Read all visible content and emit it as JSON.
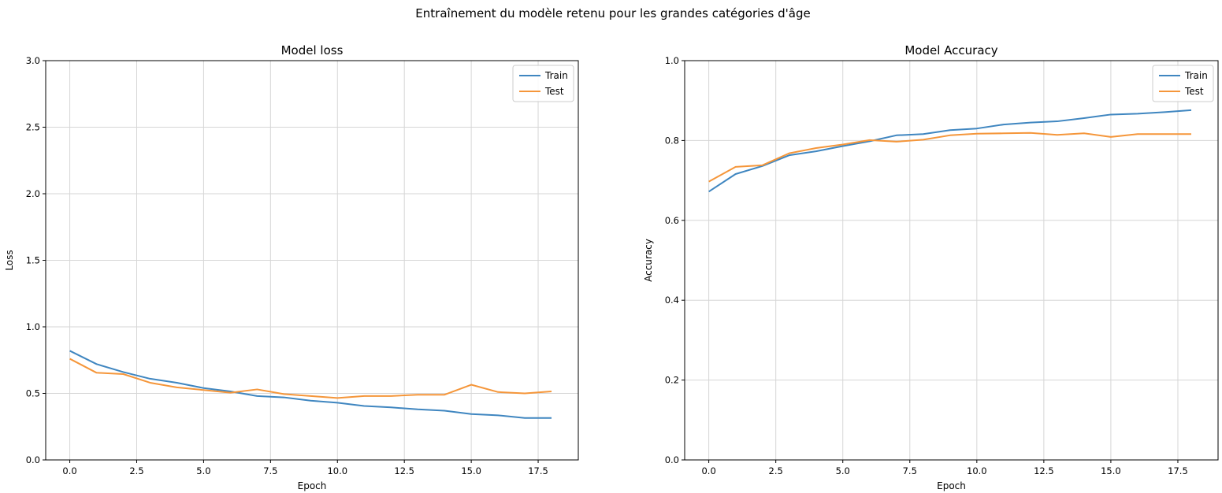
{
  "figure": {
    "suptitle": "Entraînement du modèle retenu pour les grandes catégories d'âge"
  },
  "colors": {
    "train": "#3f86c0",
    "test": "#f5963a",
    "grid": "#d6d6d6"
  },
  "chart_data": [
    {
      "type": "line",
      "title": "Model loss",
      "xlabel": "Epoch",
      "ylabel": "Loss",
      "xlim": [
        -0.9,
        19.0
      ],
      "ylim": [
        0,
        3.0
      ],
      "xticks": [
        0,
        2.5,
        5,
        7.5,
        10,
        12.5,
        15,
        17.5
      ],
      "xtick_labels": [
        "0.0",
        "2.5",
        "5.0",
        "7.5",
        "10.0",
        "12.5",
        "15.0",
        "17.5"
      ],
      "yticks": [
        0,
        0.5,
        1,
        1.5,
        2,
        2.5,
        3
      ],
      "ytick_labels": [
        "0.0",
        "0.5",
        "1.0",
        "1.5",
        "2.0",
        "2.5",
        "3.0"
      ],
      "grid": true,
      "legend": "top-right",
      "x": [
        0,
        1,
        2,
        3,
        4,
        5,
        6,
        7,
        8,
        9,
        10,
        11,
        12,
        13,
        14,
        15,
        16,
        17,
        18
      ],
      "series": [
        {
          "name": "Train",
          "values": [
            0.82,
            0.72,
            0.66,
            0.61,
            0.58,
            0.54,
            0.515,
            0.48,
            0.47,
            0.445,
            0.43,
            0.405,
            0.395,
            0.38,
            0.37,
            0.345,
            0.335,
            0.315,
            0.315
          ]
        },
        {
          "name": "Test",
          "values": [
            0.76,
            0.655,
            0.645,
            0.58,
            0.545,
            0.525,
            0.505,
            0.53,
            0.495,
            0.48,
            0.465,
            0.48,
            0.48,
            0.49,
            0.49,
            0.565,
            0.51,
            0.5,
            0.515
          ]
        }
      ]
    },
    {
      "type": "line",
      "title": "Model Accuracy",
      "xlabel": "Epoch",
      "ylabel": "Accuracy",
      "xlim": [
        -0.9,
        19.0
      ],
      "ylim": [
        0,
        1.0
      ],
      "xticks": [
        0,
        2.5,
        5,
        7.5,
        10,
        12.5,
        15,
        17.5
      ],
      "xtick_labels": [
        "0.0",
        "2.5",
        "5.0",
        "7.5",
        "10.0",
        "12.5",
        "15.0",
        "17.5"
      ],
      "yticks": [
        0,
        0.2,
        0.4,
        0.6,
        0.8,
        1.0
      ],
      "ytick_labels": [
        "0.0",
        "0.2",
        "0.4",
        "0.6",
        "0.8",
        "1.0"
      ],
      "grid": true,
      "legend": "top-right",
      "x": [
        0,
        1,
        2,
        3,
        4,
        5,
        6,
        7,
        8,
        9,
        10,
        11,
        12,
        13,
        14,
        15,
        16,
        17,
        18
      ],
      "series": [
        {
          "name": "Train",
          "values": [
            0.672,
            0.716,
            0.736,
            0.763,
            0.773,
            0.786,
            0.798,
            0.813,
            0.816,
            0.826,
            0.83,
            0.84,
            0.845,
            0.848,
            0.856,
            0.865,
            0.867,
            0.871,
            0.876
          ]
        },
        {
          "name": "Test",
          "values": [
            0.697,
            0.734,
            0.738,
            0.768,
            0.781,
            0.79,
            0.801,
            0.797,
            0.802,
            0.813,
            0.817,
            0.818,
            0.819,
            0.814,
            0.818,
            0.809,
            0.816,
            0.816,
            0.816
          ]
        }
      ]
    }
  ]
}
